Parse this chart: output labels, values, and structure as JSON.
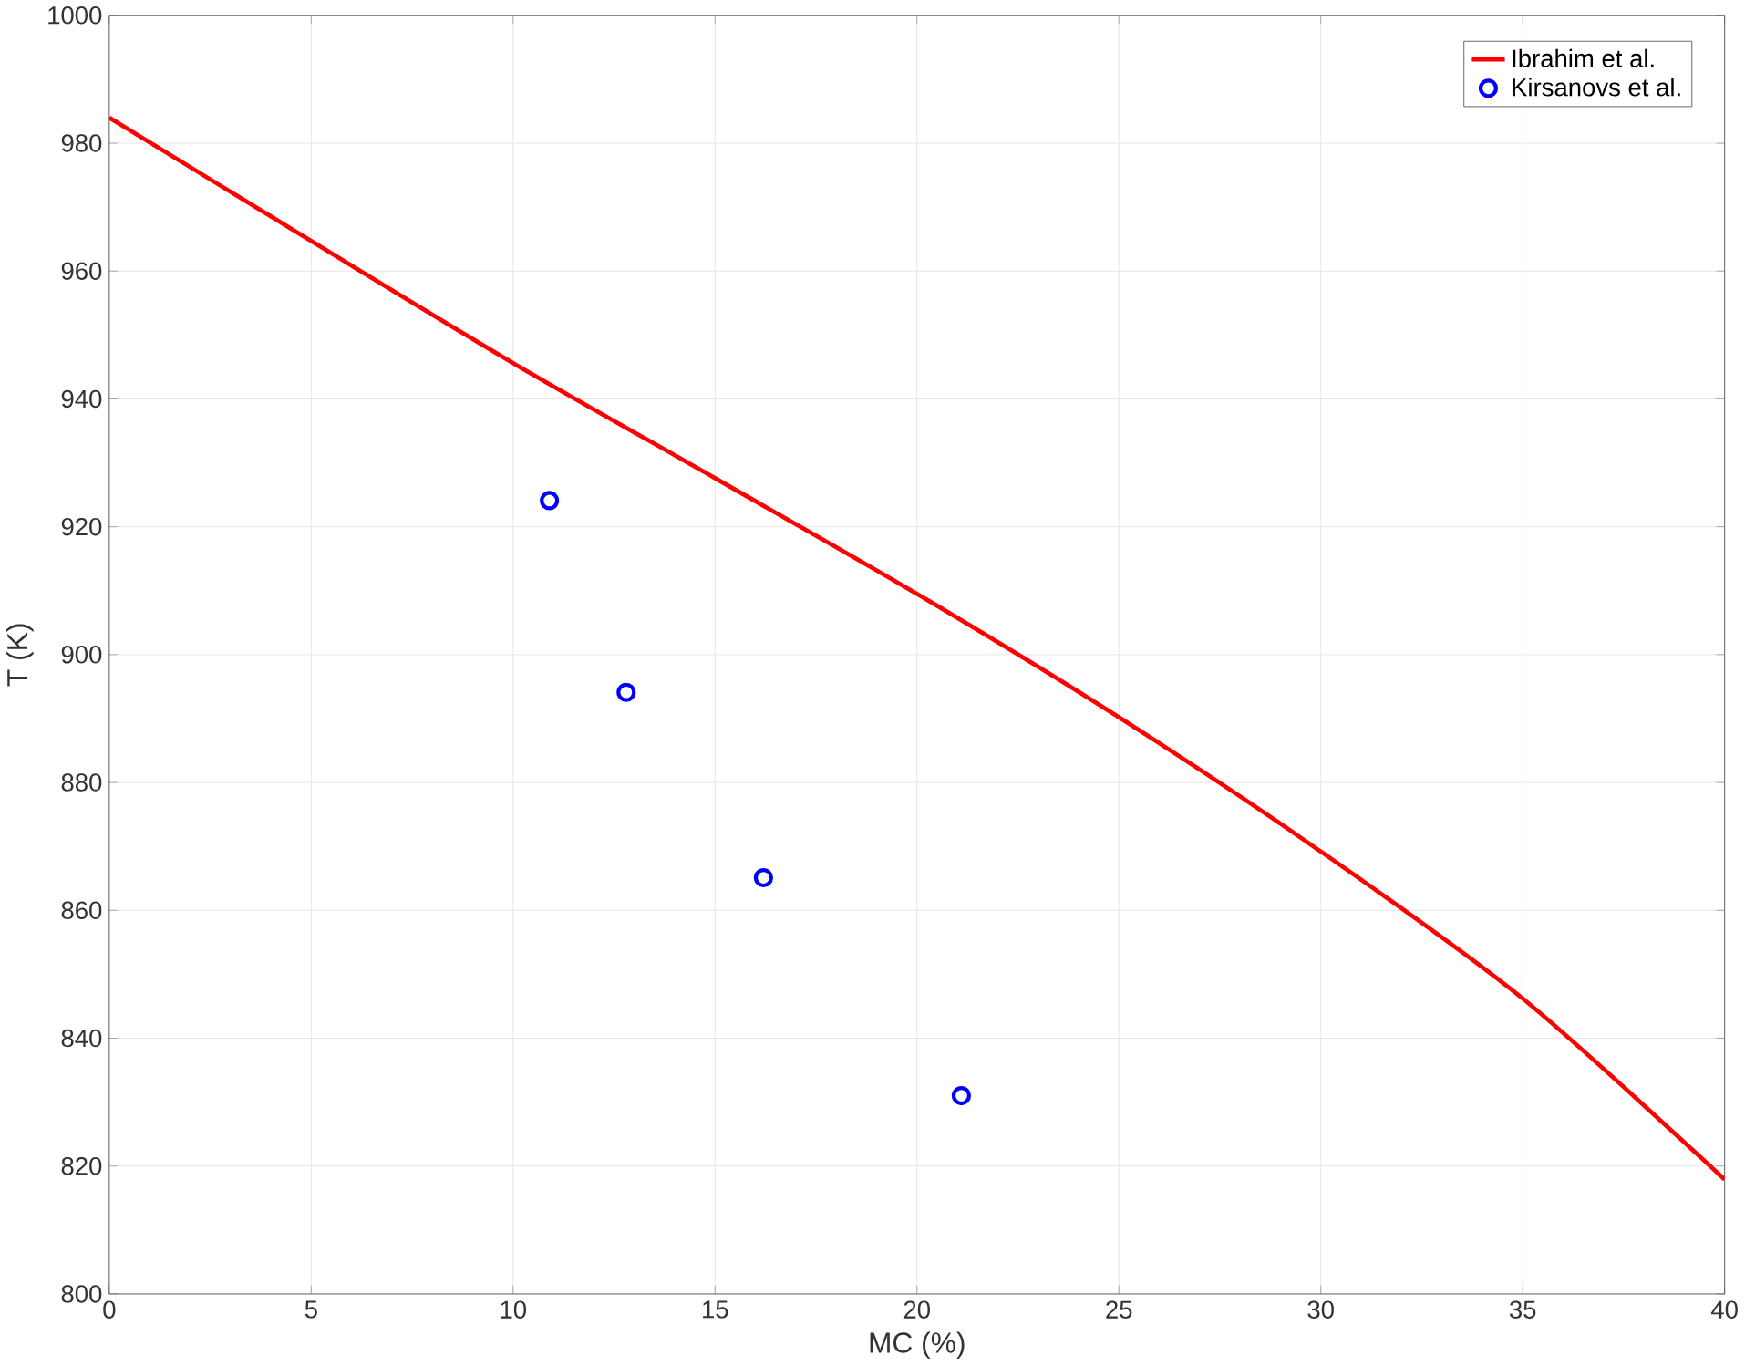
{
  "chart_data": {
    "type": "line",
    "xlabel": "MC (%)",
    "ylabel": "T (K)",
    "xlim": [
      0,
      40
    ],
    "xticks": [
      0,
      5,
      10,
      15,
      20,
      25,
      30,
      35,
      40
    ],
    "ylim": [
      800,
      1000
    ],
    "yticks": [
      800,
      820,
      840,
      860,
      880,
      900,
      920,
      940,
      960,
      980,
      1000
    ],
    "grid": true,
    "legend": "top right",
    "series": [
      {
        "name": "Ibrahim et al.",
        "color": "#ff0000",
        "marker": "none",
        "line_style": "solid",
        "x": [
          0,
          5,
          10,
          15,
          20,
          25,
          30,
          35,
          40
        ],
        "values": [
          984,
          964.7,
          945.6,
          927.6,
          909.5,
          890.2,
          869.2,
          846.2,
          817.9
        ]
      },
      {
        "name": "Kirsanovs et al.",
        "type": "scatter",
        "color": "#0000ff",
        "marker": "circle",
        "x": [
          10.9,
          12.8,
          16.2,
          21.1
        ],
        "values": [
          924.1,
          894.1,
          865.1,
          831.0
        ]
      }
    ]
  }
}
